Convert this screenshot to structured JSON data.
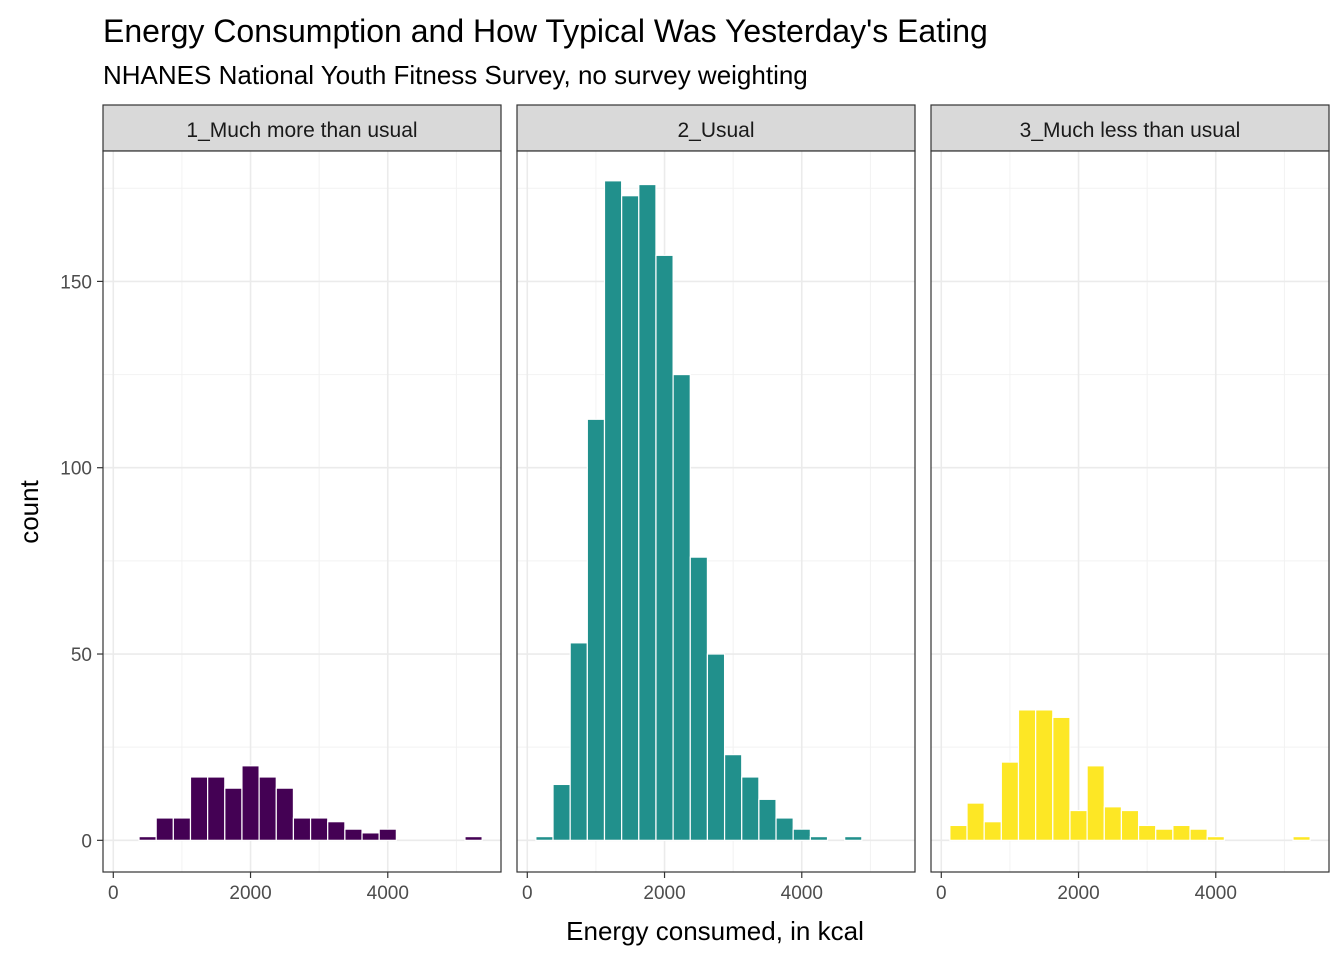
{
  "chart_data": {
    "type": "bar",
    "title": "Energy Consumption and How Typical Was Yesterday's Eating",
    "subtitle": "NHANES National Youth Fitness Survey, no survey weighting",
    "xlabel": "Energy consumed, in kcal",
    "ylabel": "count",
    "xlim": [
      -150,
      5650
    ],
    "ylim": [
      -8.5,
      185
    ],
    "x_ticks": [
      0,
      2000,
      4000
    ],
    "x_tick_labels": [
      "0",
      "2000",
      "4000"
    ],
    "y_ticks": [
      0,
      50,
      100,
      150
    ],
    "y_tick_labels": [
      "0",
      "50",
      "100",
      "150"
    ],
    "grid": true,
    "bin_width": 250,
    "facets": [
      {
        "label": "1_Much more than usual",
        "color": "#440154",
        "bins": [
          {
            "x": 500,
            "count": 1
          },
          {
            "x": 750,
            "count": 6
          },
          {
            "x": 1000,
            "count": 6
          },
          {
            "x": 1250,
            "count": 17
          },
          {
            "x": 1500,
            "count": 17
          },
          {
            "x": 1750,
            "count": 14
          },
          {
            "x": 2000,
            "count": 20
          },
          {
            "x": 2250,
            "count": 17
          },
          {
            "x": 2500,
            "count": 14
          },
          {
            "x": 2750,
            "count": 6
          },
          {
            "x": 3000,
            "count": 6
          },
          {
            "x": 3250,
            "count": 5
          },
          {
            "x": 3500,
            "count": 3
          },
          {
            "x": 3750,
            "count": 2
          },
          {
            "x": 4000,
            "count": 3
          },
          {
            "x": 5250,
            "count": 1
          }
        ]
      },
      {
        "label": "2_Usual",
        "color": "#21908C",
        "bins": [
          {
            "x": 250,
            "count": 1
          },
          {
            "x": 500,
            "count": 15
          },
          {
            "x": 750,
            "count": 53
          },
          {
            "x": 1000,
            "count": 113
          },
          {
            "x": 1250,
            "count": 177
          },
          {
            "x": 1500,
            "count": 173
          },
          {
            "x": 1750,
            "count": 176
          },
          {
            "x": 2000,
            "count": 157
          },
          {
            "x": 2250,
            "count": 125
          },
          {
            "x": 2500,
            "count": 76
          },
          {
            "x": 2750,
            "count": 50
          },
          {
            "x": 3000,
            "count": 23
          },
          {
            "x": 3250,
            "count": 17
          },
          {
            "x": 3500,
            "count": 11
          },
          {
            "x": 3750,
            "count": 6
          },
          {
            "x": 4000,
            "count": 3
          },
          {
            "x": 4250,
            "count": 1
          },
          {
            "x": 4750,
            "count": 1
          }
        ]
      },
      {
        "label": "3_Much less than usual",
        "color": "#FDE725",
        "bins": [
          {
            "x": 250,
            "count": 4
          },
          {
            "x": 500,
            "count": 10
          },
          {
            "x": 750,
            "count": 5
          },
          {
            "x": 1000,
            "count": 21
          },
          {
            "x": 1250,
            "count": 35
          },
          {
            "x": 1500,
            "count": 35
          },
          {
            "x": 1750,
            "count": 33
          },
          {
            "x": 2000,
            "count": 8
          },
          {
            "x": 2250,
            "count": 20
          },
          {
            "x": 2500,
            "count": 9
          },
          {
            "x": 2750,
            "count": 8
          },
          {
            "x": 3000,
            "count": 4
          },
          {
            "x": 3250,
            "count": 3
          },
          {
            "x": 3500,
            "count": 4
          },
          {
            "x": 3750,
            "count": 3
          },
          {
            "x": 4000,
            "count": 1
          },
          {
            "x": 5250,
            "count": 1
          }
        ]
      }
    ]
  }
}
